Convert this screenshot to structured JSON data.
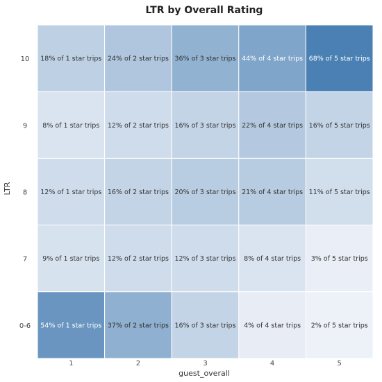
{
  "chart_data": {
    "type": "heatmap",
    "title": "LTR by Overall Rating",
    "xlabel": "guest_overall",
    "ylabel": "LTR",
    "x_categories": [
      "1",
      "2",
      "3",
      "4",
      "5"
    ],
    "y_categories": [
      "10",
      "9",
      "8",
      "7",
      "0-6"
    ],
    "values": [
      [
        18,
        24,
        36,
        44,
        68
      ],
      [
        8,
        12,
        16,
        22,
        16
      ],
      [
        12,
        16,
        20,
        21,
        11
      ],
      [
        9,
        12,
        12,
        8,
        3
      ],
      [
        54,
        37,
        16,
        4,
        2
      ]
    ],
    "cell_labels": [
      [
        "18% of 1 star trips",
        "24% of 2 star trips",
        "36% of 3 star trips",
        "44% of 4 star trips",
        "68% of 5 star trips"
      ],
      [
        "8% of 1 star trips",
        "12% of 2 star trips",
        "16% of 3 star trips",
        "22% of 4 star trips",
        "16% of 5 star trips"
      ],
      [
        "12% of 1 star trips",
        "16% of 2 star trips",
        "20% of 3 star trips",
        "21% of 4 star trips",
        "11% of 5 star trips"
      ],
      [
        "9% of 1 star trips",
        "12% of 2 star trips",
        "12% of 3 star trips",
        "8% of 4 star trips",
        "3% of 5 star trips"
      ],
      [
        "54% of 1 star trips",
        "37% of 2 star trips",
        "16% of 3 star trips",
        "4% of 4 star trips",
        "2% of 5 star trips"
      ]
    ],
    "color_low": "#f6f7fc",
    "color_high": "#4a80b3",
    "grid": false,
    "legend": "none"
  }
}
